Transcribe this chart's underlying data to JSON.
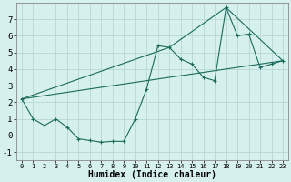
{
  "xlabel": "Humidex (Indice chaleur)",
  "ylabel": "",
  "background_color": "#d6f0ee",
  "grid_color": "#b8d8d4",
  "line_color": "#1a6b5a",
  "xlim": [
    -0.5,
    23.5
  ],
  "ylim": [
    -1.5,
    8.0
  ],
  "xticks": [
    0,
    1,
    2,
    3,
    4,
    5,
    6,
    7,
    8,
    9,
    10,
    11,
    12,
    13,
    14,
    15,
    16,
    17,
    18,
    19,
    20,
    21,
    22,
    23
  ],
  "yticks": [
    -1,
    0,
    1,
    2,
    3,
    4,
    5,
    6,
    7
  ],
  "series1_x": [
    0,
    1,
    2,
    3,
    4,
    5,
    6,
    7,
    8,
    9,
    10,
    11,
    12,
    13,
    14,
    15,
    16,
    17,
    18,
    19,
    20,
    21,
    22,
    23
  ],
  "series1_y": [
    2.2,
    1.0,
    0.6,
    1.0,
    0.5,
    -0.2,
    -0.3,
    -0.4,
    -0.35,
    -0.35,
    1.0,
    2.8,
    5.4,
    5.3,
    4.6,
    4.3,
    3.5,
    3.3,
    7.7,
    6.0,
    6.1,
    4.1,
    4.3,
    4.5
  ],
  "series2_x": [
    0,
    23
  ],
  "series2_y": [
    2.2,
    4.5
  ],
  "series3_x": [
    0,
    13,
    18,
    23
  ],
  "series3_y": [
    2.2,
    5.3,
    7.7,
    4.5
  ],
  "xtick_fontsize": 5.0,
  "ytick_fontsize": 6.5,
  "xlabel_fontsize": 7.0
}
